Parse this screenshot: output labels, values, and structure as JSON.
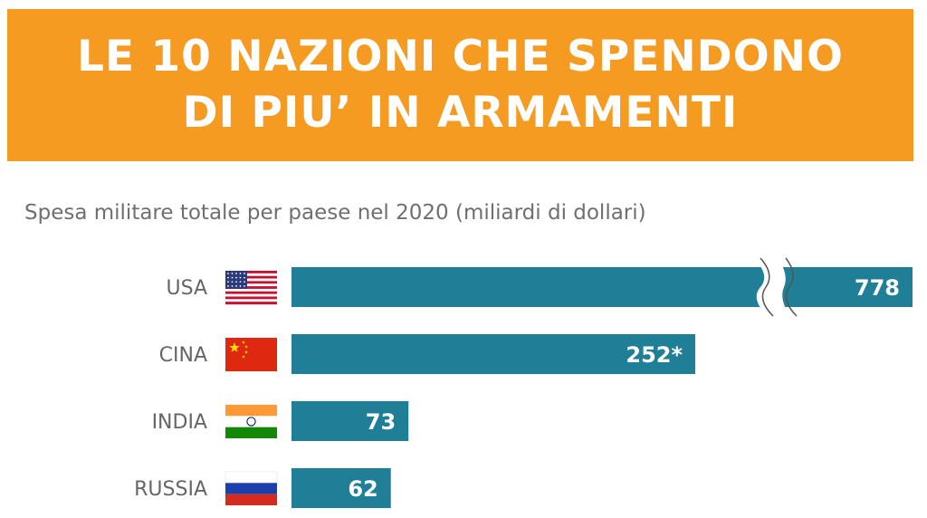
{
  "header": {
    "title_line1": "LE 10 NAZIONI CHE SPENDONO",
    "title_line2": "DI PIU’ IN ARMAMENTI"
  },
  "colors": {
    "banner": "#f59b22",
    "bar": "#1f7f96",
    "text": "#666666"
  },
  "chart_data": {
    "type": "bar",
    "orientation": "horizontal",
    "subtitle": "Spesa militare totale per paese nel 2020 (miliardi di dollari)",
    "categories": [
      "USA",
      "CINA",
      "INDIA",
      "RUSSIA"
    ],
    "values": [
      778,
      252,
      73,
      62
    ],
    "value_labels": [
      "778",
      "252*",
      "73",
      "62"
    ],
    "flags": [
      "usa-flag-icon",
      "china-flag-icon",
      "india-flag-icon",
      "russia-flag-icon"
    ],
    "axis_break_on": "USA"
  }
}
